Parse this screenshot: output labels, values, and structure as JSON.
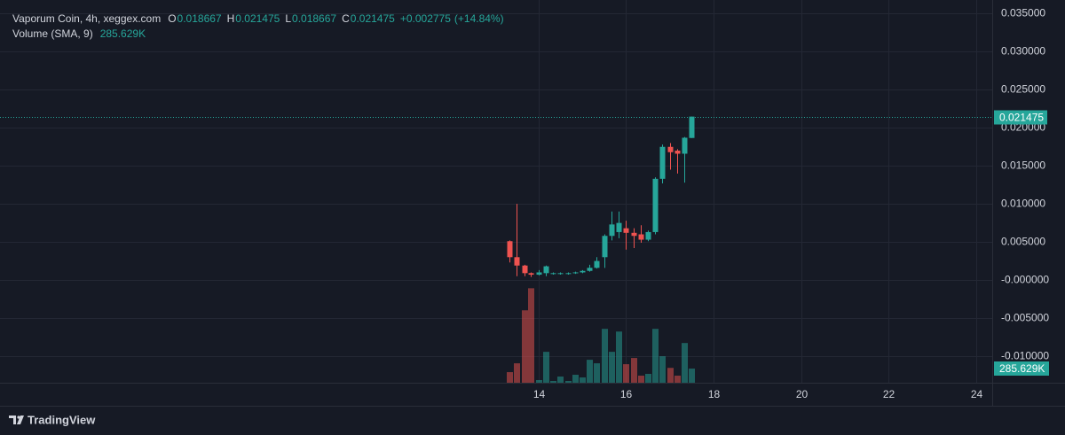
{
  "chart_data": {
    "type": "candlestick",
    "legend": {
      "symbol": "Vaporum Coin, 4h, xeggex.com",
      "ohlc": [
        {
          "key": "O",
          "value": 0.018667
        },
        {
          "key": "H",
          "value": 0.021475
        },
        {
          "key": "L",
          "value": 0.018667
        },
        {
          "key": "C",
          "value": 0.021475
        }
      ],
      "change": {
        "value": 0.002775,
        "label": "+0.002775"
      },
      "change_pct": {
        "value": 14.84,
        "label": "(+14.84%)"
      }
    },
    "x": [
      13.33,
      13.5,
      13.67,
      13.83,
      14,
      14.17,
      14.33,
      14.5,
      14.67,
      14.83,
      15,
      15.17,
      15.33,
      15.5,
      15.67,
      15.83,
      16,
      16.17,
      16.33,
      16.5,
      16.67,
      16.83,
      17,
      17.17,
      17.33,
      17.5
    ],
    "open": [
      0.0051,
      0.003,
      0.0019,
      0.0009,
      0.0007,
      0.0009,
      0.0008,
      0.0008,
      0.0008,
      0.0009,
      0.001,
      0.0012,
      0.0016,
      0.003,
      0.0058,
      0.0063,
      0.0068,
      0.0062,
      0.006,
      0.0053,
      0.0063,
      0.0133,
      0.0175,
      0.017,
      0.0166,
      0.018667
    ],
    "high": [
      0.0052,
      0.01,
      0.002,
      0.001,
      0.0013,
      0.0019,
      0.001,
      0.001,
      0.001,
      0.0011,
      0.0013,
      0.002,
      0.003,
      0.006,
      0.009,
      0.009,
      0.0078,
      0.0068,
      0.0072,
      0.0065,
      0.0135,
      0.0178,
      0.018,
      0.0172,
      0.0188,
      0.021475
    ],
    "low": [
      0.0023,
      0.0005,
      0.0005,
      0.0004,
      0.0006,
      0.0005,
      0.0007,
      0.0007,
      0.0007,
      0.0008,
      0.0009,
      0.0011,
      0.0015,
      0.0016,
      0.0052,
      0.0055,
      0.004,
      0.0042,
      0.0049,
      0.0051,
      0.006,
      0.0127,
      0.0145,
      0.014,
      0.0128,
      0.018667
    ],
    "close": [
      0.003,
      0.0019,
      0.0009,
      0.0007,
      0.001,
      0.0018,
      0.0009,
      0.0009,
      0.0009,
      0.001,
      0.0012,
      0.0016,
      0.0025,
      0.0058,
      0.0073,
      0.0075,
      0.0062,
      0.0058,
      0.0053,
      0.0063,
      0.0133,
      0.0175,
      0.0168,
      0.0166,
      0.0187,
      0.021475
    ],
    "up_color": "#26a69a",
    "down_color": "#ef5350",
    "volume": {
      "name": "Volume (SMA, 9)",
      "values": [
        214000,
        393000,
        1464000,
        1910000,
        54000,
        625000,
        36000,
        125000,
        36000,
        161000,
        107000,
        464000,
        393000,
        1089000,
        625000,
        1035000,
        375000,
        500000,
        143000,
        179000,
        1089000,
        536000,
        300000,
        143000,
        803000,
        285629
      ],
      "last_label": "285.629K"
    },
    "volume_ylim": [
      0,
      2400000
    ],
    "xlim": [
      1.69,
      24.37
    ],
    "xticks": [
      14,
      16,
      18,
      20,
      22,
      24
    ],
    "ylim": [
      -0.0135,
      0.0368
    ],
    "yticks": [
      {
        "value": -0.01,
        "label": "-0.010000"
      },
      {
        "value": -0.005,
        "label": "-0.005000"
      },
      {
        "value": 0,
        "label": "-0.000000"
      },
      {
        "value": 0.005,
        "label": "0.005000"
      },
      {
        "value": 0.01,
        "label": "0.010000"
      },
      {
        "value": 0.015,
        "label": "0.015000"
      },
      {
        "value": 0.02,
        "label": "0.020000"
      },
      {
        "value": 0.025,
        "label": "0.025000"
      },
      {
        "value": 0.03,
        "label": "0.030000"
      },
      {
        "value": 0.035,
        "label": "0.035000"
      }
    ],
    "grid": true,
    "footer": "TradingView"
  }
}
